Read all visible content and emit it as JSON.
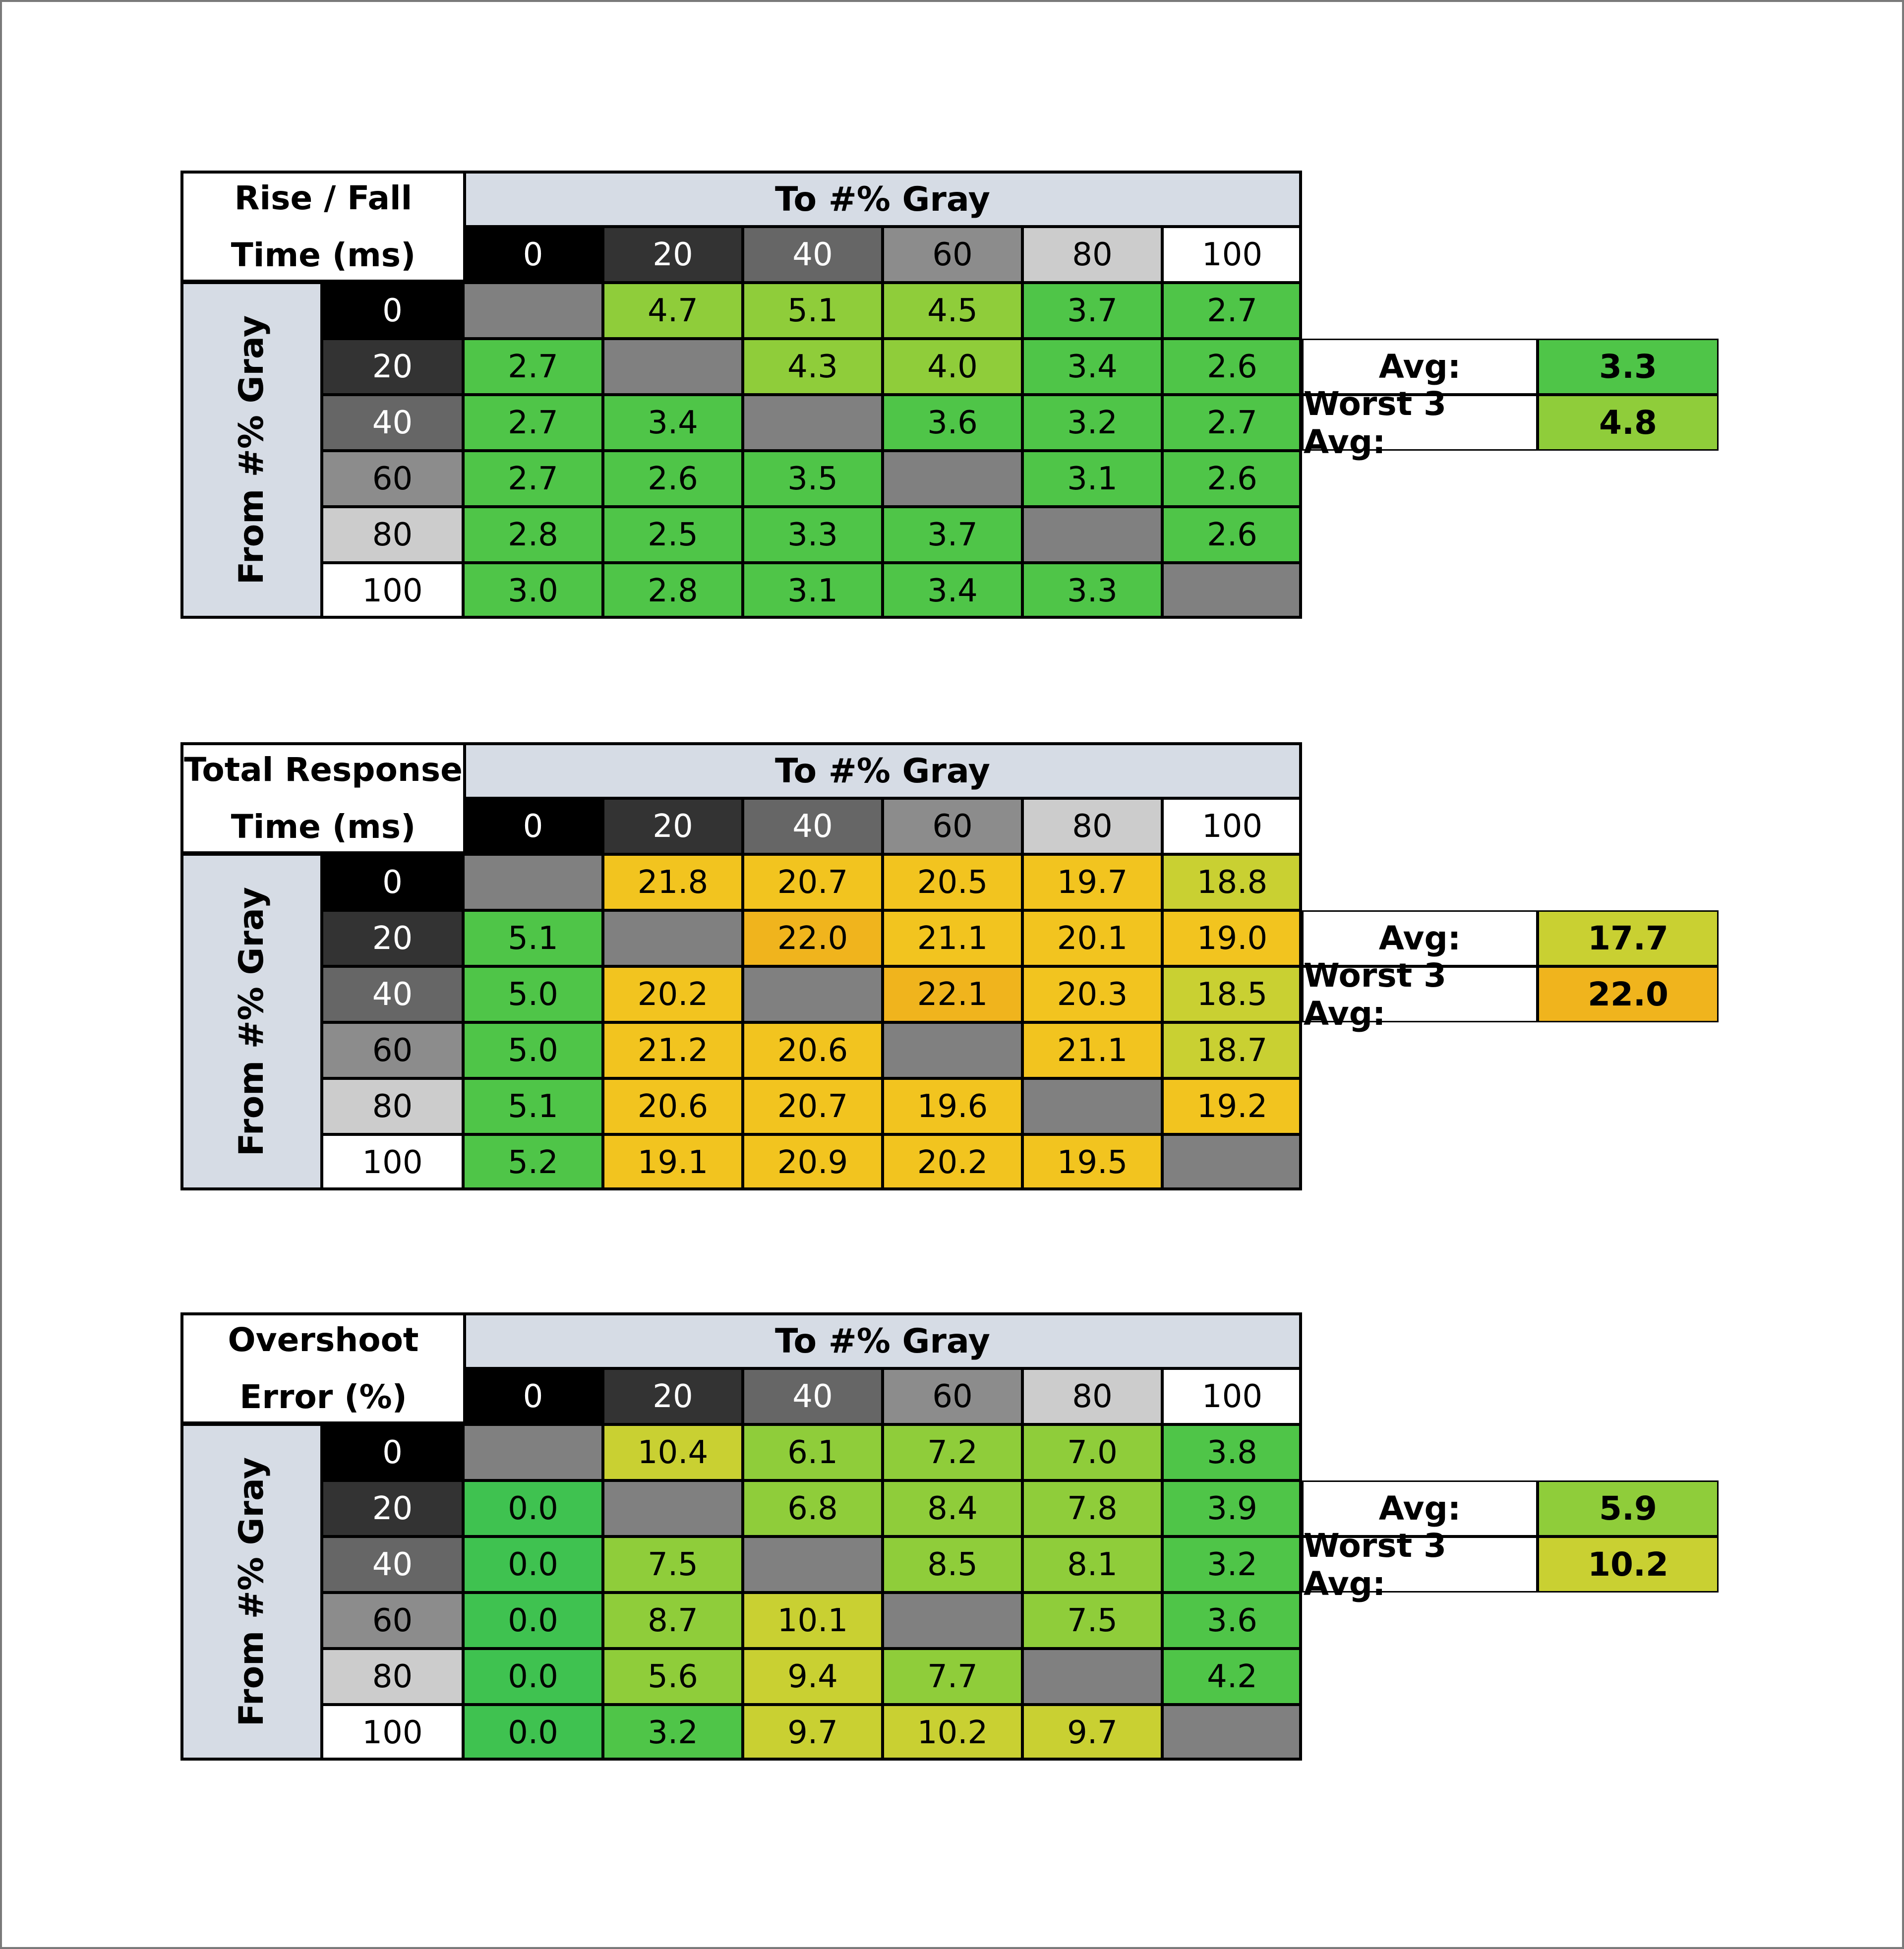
{
  "chart_data": [
    {
      "type": "table",
      "title_lines": [
        "Rise / Fall",
        "Time (ms)"
      ],
      "col_header": "To #% Gray",
      "row_header": "From #% Gray",
      "levels": [
        "0",
        "20",
        "40",
        "60",
        "80",
        "100"
      ],
      "values": [
        [
          null,
          4.7,
          5.1,
          4.5,
          3.7,
          2.7
        ],
        [
          2.7,
          null,
          4.3,
          4.0,
          3.4,
          2.6
        ],
        [
          2.7,
          3.4,
          null,
          3.6,
          3.2,
          2.7
        ],
        [
          2.7,
          2.6,
          3.5,
          null,
          3.1,
          2.6
        ],
        [
          2.8,
          2.5,
          3.3,
          3.7,
          null,
          2.6
        ],
        [
          3.0,
          2.8,
          3.1,
          3.4,
          3.3,
          null
        ]
      ],
      "summary": [
        {
          "label": "Avg:",
          "value": "3.3"
        },
        {
          "label": "Worst 3 Avg:",
          "value": "4.8"
        }
      ]
    },
    {
      "type": "table",
      "title_lines": [
        "Total Response",
        "Time (ms)"
      ],
      "col_header": "To #% Gray",
      "row_header": "From #% Gray",
      "levels": [
        "0",
        "20",
        "40",
        "60",
        "80",
        "100"
      ],
      "values": [
        [
          null,
          21.8,
          20.7,
          20.5,
          19.7,
          18.8
        ],
        [
          5.1,
          null,
          22.0,
          21.1,
          20.1,
          19.0
        ],
        [
          5.0,
          20.2,
          null,
          22.1,
          20.3,
          18.5
        ],
        [
          5.0,
          21.2,
          20.6,
          null,
          21.1,
          18.7
        ],
        [
          5.1,
          20.6,
          20.7,
          19.6,
          null,
          19.2
        ],
        [
          5.2,
          19.1,
          20.9,
          20.2,
          19.5,
          null
        ]
      ],
      "summary": [
        {
          "label": "Avg:",
          "value": "17.7"
        },
        {
          "label": "Worst 3 Avg:",
          "value": "22.0"
        }
      ]
    },
    {
      "type": "table",
      "title_lines": [
        "Overshoot",
        "Error (%)"
      ],
      "col_header": "To #% Gray",
      "row_header": "From #% Gray",
      "levels": [
        "0",
        "20",
        "40",
        "60",
        "80",
        "100"
      ],
      "values": [
        [
          null,
          10.4,
          6.1,
          7.2,
          7.0,
          3.8
        ],
        [
          0.0,
          null,
          6.8,
          8.4,
          7.8,
          3.9
        ],
        [
          0.0,
          7.5,
          null,
          8.5,
          8.1,
          3.2
        ],
        [
          0.0,
          8.7,
          10.1,
          null,
          7.5,
          3.6
        ],
        [
          0.0,
          5.6,
          9.4,
          7.7,
          null,
          4.2
        ],
        [
          0.0,
          3.2,
          9.7,
          10.2,
          9.7,
          null
        ]
      ],
      "summary": [
        {
          "label": "Avg:",
          "value": "5.9"
        },
        {
          "label": "Worst 3 Avg:",
          "value": "10.2"
        }
      ]
    }
  ],
  "colors": {
    "level_backgrounds": [
      "#000000",
      "#333333",
      "#666666",
      "#8c8c8c",
      "#cccccc",
      "#ffffff"
    ],
    "level_text": [
      "#ffffff",
      "#ffffff",
      "#ffffff",
      "#000000",
      "#000000",
      "#000000"
    ],
    "diagonal": "#808080",
    "header_fill": "#d6dce5",
    "green": "#4fc548",
    "light_green": "#8fcd3a",
    "yellow_green": "#c9d032",
    "yellow": "#f2c41f",
    "amber": "#f0b41d"
  }
}
